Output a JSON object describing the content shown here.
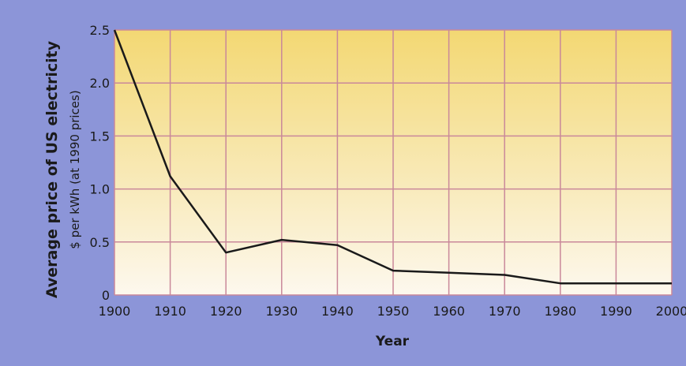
{
  "chart_data": {
    "type": "line",
    "title": "",
    "ylabel": "Average price of US electricity",
    "ylabel_sub": "$ per kWh (at 1990 prices)",
    "xlabel": "Year",
    "x": [
      1900,
      1910,
      1920,
      1930,
      1940,
      1950,
      1960,
      1970,
      1980,
      1990,
      2000
    ],
    "x_tick_labels": [
      "1900",
      "1910",
      "1920",
      "1930",
      "1940",
      "1950",
      "1960",
      "1970",
      "1980",
      "1990",
      "2000"
    ],
    "y_ticks": [
      0,
      0.5,
      1.0,
      1.5,
      2.0,
      2.5
    ],
    "y_tick_labels": [
      "0",
      "0.5",
      "1.0",
      "1.5",
      "2.0",
      "2.5"
    ],
    "xlim": [
      1900,
      2000
    ],
    "ylim": [
      0,
      2.5
    ],
    "grid": true,
    "series": [
      {
        "values": [
          2.5,
          1.12,
          0.4,
          0.52,
          0.47,
          0.23,
          0.21,
          0.19,
          0.11,
          0.11,
          0.11
        ]
      }
    ],
    "colors": {
      "background": "#8c95d8",
      "plot_top": "#f3d873",
      "plot_bottom": "#fdf6e6",
      "grid": "#c9889a",
      "line": "#1a1a1a",
      "text": "#1a1a1a"
    }
  }
}
